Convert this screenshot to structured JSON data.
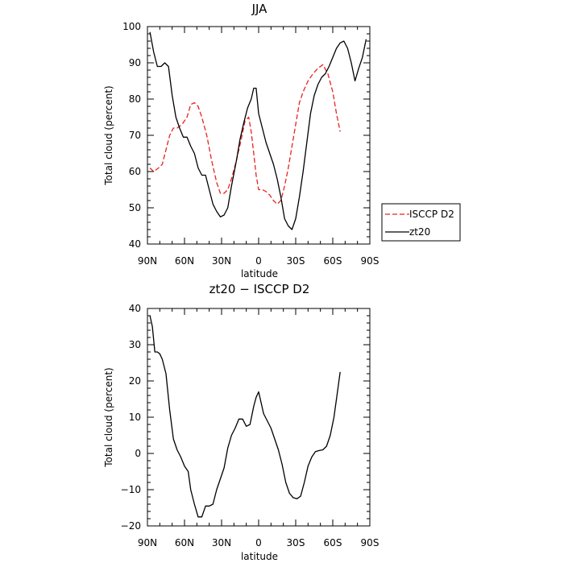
{
  "chart_data": [
    {
      "type": "line",
      "title": "JJA",
      "xlabel": "latitude",
      "ylabel": "Total cloud (percent)",
      "xlim": [
        90,
        -90
      ],
      "ylim": [
        40,
        100
      ],
      "xticks": [
        90,
        60,
        30,
        0,
        -30,
        -60,
        -90
      ],
      "xtick_labels": [
        "90N",
        "60N",
        "30N",
        "0",
        "30S",
        "60S",
        "90S"
      ],
      "yticks": [
        40,
        50,
        60,
        70,
        80,
        90,
        100
      ],
      "ytick_labels": [
        "40",
        "50",
        "60",
        "70",
        "80",
        "90",
        "100"
      ],
      "legend_position": "right",
      "series": [
        {
          "name": "ISCCP D2",
          "color": "#e8231f",
          "dash": "dashed",
          "x": [
            88,
            85,
            81,
            78,
            75,
            72,
            69,
            66,
            62,
            58,
            55,
            52,
            49,
            46,
            42,
            38,
            34,
            31,
            28,
            25,
            22,
            18,
            14,
            11,
            8,
            6,
            4,
            2,
            0,
            -3,
            -6,
            -9,
            -12,
            -15,
            -18,
            -21,
            -24,
            -27,
            -30,
            -33,
            -36,
            -40,
            -44,
            -48,
            -52,
            -56,
            -60,
            -63,
            -66
          ],
          "y": [
            61,
            60,
            61,
            62,
            66,
            70,
            72,
            72,
            73,
            75,
            78.5,
            79,
            78,
            75,
            70,
            63,
            57,
            54,
            54,
            55,
            58,
            63,
            69,
            74,
            75,
            71,
            65,
            59,
            55,
            55,
            54.5,
            53.5,
            52,
            51,
            52,
            56,
            61,
            67,
            73,
            79,
            82,
            85,
            87,
            88.5,
            89.5,
            87,
            82,
            76,
            71
          ]
        },
        {
          "name": "zt20",
          "color": "#000000",
          "dash": "solid",
          "x": [
            88,
            85,
            82,
            79,
            76,
            73,
            70,
            67,
            64,
            61,
            58,
            55,
            52,
            49,
            46,
            43,
            40,
            37,
            34,
            31,
            28,
            25,
            22,
            18,
            15,
            12,
            9,
            6,
            4,
            2,
            0,
            -3,
            -6,
            -9,
            -12,
            -15,
            -18,
            -21,
            -24,
            -27,
            -30,
            -33,
            -36,
            -39,
            -42,
            -45,
            -48,
            -51,
            -54,
            -57,
            -60,
            -63,
            -66,
            -69,
            -72,
            -75,
            -78,
            -81,
            -84,
            -87
          ],
          "y": [
            98.5,
            93,
            89,
            89,
            90,
            89,
            81,
            75,
            72,
            69.5,
            69.5,
            67,
            65,
            61,
            59,
            59,
            55,
            51,
            49,
            47.5,
            48,
            50,
            56,
            63,
            69,
            73.5,
            77.5,
            80,
            83,
            83,
            76,
            72,
            68,
            65,
            62,
            58,
            53,
            47,
            45,
            44,
            47,
            53,
            60,
            68,
            76,
            81,
            84,
            86,
            87,
            89,
            91.5,
            94,
            95.5,
            96,
            94,
            90,
            85,
            88.5,
            91.5,
            96.5
          ]
        }
      ]
    },
    {
      "type": "line",
      "title": "zt20 − ISCCP D2",
      "xlabel": "latitude",
      "ylabel": "Total cloud (percent)",
      "xlim": [
        90,
        -90
      ],
      "ylim": [
        -20,
        40
      ],
      "xticks": [
        90,
        60,
        30,
        0,
        -30,
        -60,
        -90
      ],
      "xtick_labels": [
        "90N",
        "60N",
        "30N",
        "0",
        "30S",
        "60S",
        "90S"
      ],
      "yticks": [
        -20,
        -10,
        0,
        10,
        20,
        30,
        40
      ],
      "ytick_labels": [
        "−20",
        "−10",
        "0",
        "10",
        "20",
        "30",
        "40"
      ],
      "series": [
        {
          "color": "#000000",
          "dash": "solid",
          "x": [
            88,
            86,
            84,
            82,
            80,
            78,
            75,
            72,
            69,
            66,
            63,
            60,
            57,
            55,
            52,
            49,
            46,
            43,
            40,
            37,
            34,
            31,
            28,
            25,
            22,
            19,
            16,
            13,
            10,
            7,
            4,
            2,
            0,
            -2,
            -4,
            -7,
            -10,
            -13,
            -16,
            -19,
            -22,
            -25,
            -28,
            -31,
            -34,
            -37,
            -40,
            -43,
            -46,
            -49,
            -52,
            -55,
            -58,
            -61,
            -63,
            -66
          ],
          "y": [
            38,
            35,
            28,
            28,
            27.5,
            26,
            22,
            12,
            4,
            1,
            -1,
            -3.5,
            -5,
            -10,
            -14,
            -17.5,
            -17.5,
            -14.5,
            -14.5,
            -14,
            -10,
            -7,
            -4,
            1.5,
            5,
            7,
            9.5,
            9.5,
            7.5,
            8,
            13,
            15.5,
            17,
            14,
            11,
            9,
            7,
            4,
            1,
            -3,
            -8,
            -11,
            -12.2,
            -12.5,
            -11.8,
            -8,
            -3.5,
            -1,
            0.5,
            0.8,
            1,
            2,
            5,
            10,
            15,
            22.5
          ]
        }
      ]
    }
  ]
}
